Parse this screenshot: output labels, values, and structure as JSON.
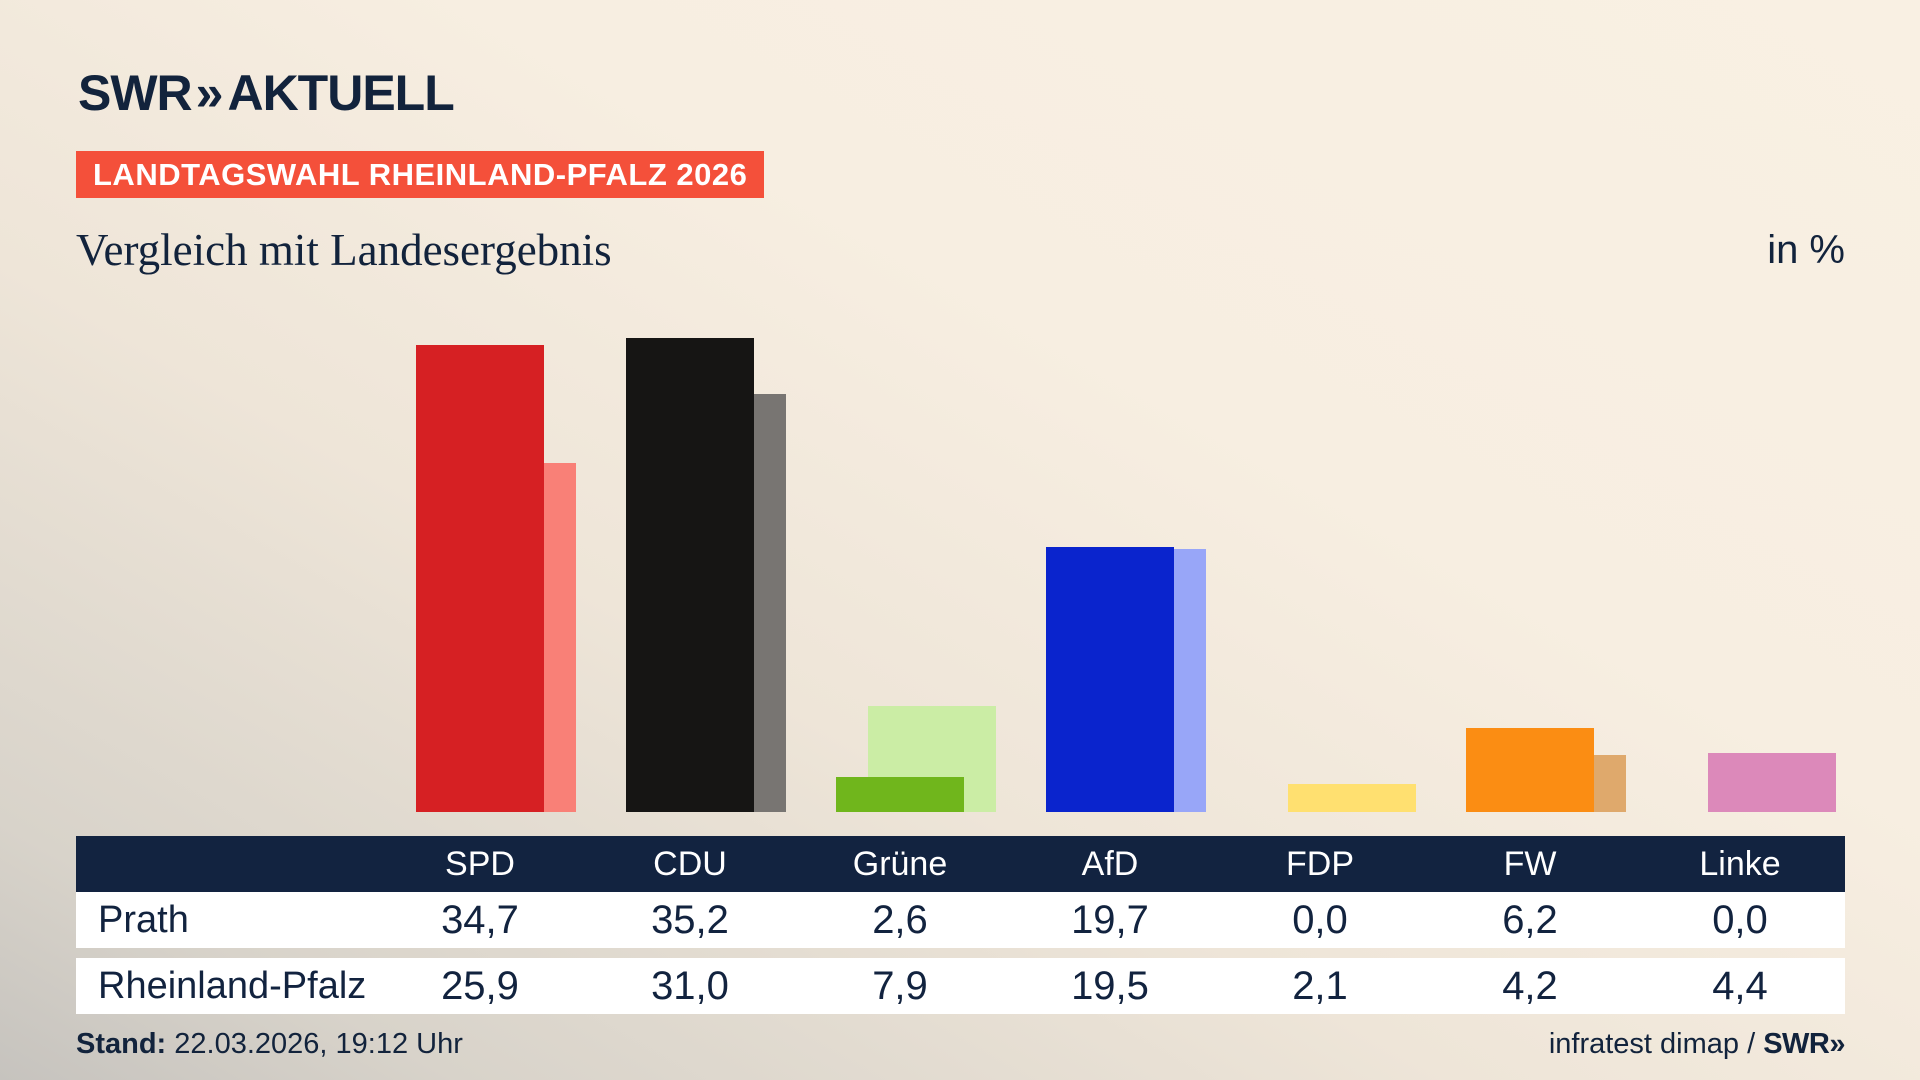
{
  "brand": {
    "logo_text": "SWR",
    "logo_chevrons": "»",
    "logo_suffix": "AKTUELL"
  },
  "badge": {
    "label": "LANDTAGSWAHL RHEINLAND-PFALZ 2026",
    "bg_color": "#f4503a"
  },
  "header": {
    "title": "Vergleich mit Landesergebnis",
    "unit_label": "in %"
  },
  "chart_data": {
    "type": "bar",
    "subtype": "grouped-overlapping",
    "title": "Vergleich mit Landesergebnis",
    "unit": "in %",
    "categories": [
      "SPD",
      "CDU",
      "Grüne",
      "AfD",
      "FDP",
      "FW",
      "Linke"
    ],
    "series": [
      {
        "name": "Prath",
        "role": "main",
        "values": [
          34.7,
          35.2,
          2.6,
          19.7,
          0.0,
          6.2,
          0.0
        ]
      },
      {
        "name": "Rheinland-Pfalz",
        "role": "light",
        "values": [
          25.9,
          31.0,
          7.9,
          19.5,
          2.1,
          4.2,
          4.4
        ]
      }
    ],
    "colors_main": [
      "#d62023",
      "#161514",
      "#70b61c",
      "#0a24cd",
      "#ffd23f",
      "#fb8d13",
      "#d64ba0"
    ],
    "colors_light": [
      "#f98077",
      "#787572",
      "#cbeda5",
      "#98a6f8",
      "#ffe070",
      "#dfa96c",
      "#dc89ba"
    ],
    "ylim": [
      0,
      36.5
    ],
    "grid": false,
    "legend": "none (values shown in table below)",
    "axis_labels_shown": false
  },
  "table": {
    "columns": [
      "SPD",
      "CDU",
      "Grüne",
      "AfD",
      "FDP",
      "FW",
      "Linke"
    ],
    "rows": [
      {
        "label": "Prath",
        "values": [
          "34,7",
          "35,2",
          "2,6",
          "19,7",
          "0,0",
          "6,2",
          "0,0"
        ]
      },
      {
        "label": "Rheinland-Pfalz",
        "values": [
          "25,9",
          "31,0",
          "7,9",
          "19,5",
          "2,1",
          "4,2",
          "4,4"
        ]
      }
    ],
    "header_bg": "#122340",
    "text_color": "#12233f"
  },
  "footer": {
    "stand_label": "Stand:",
    "stand_value": " 22.03.2026, 19:12 Uhr",
    "source_text": "infratest dimap / ",
    "source_brand": "SWR»"
  }
}
